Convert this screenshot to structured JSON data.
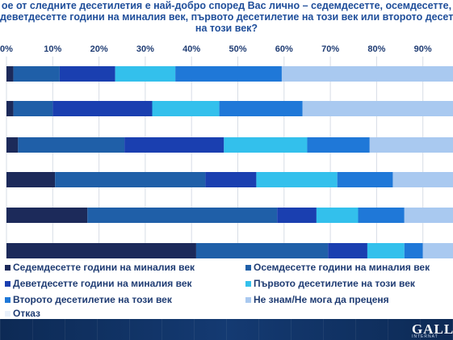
{
  "chart_data": {
    "type": "bar",
    "orientation": "horizontal",
    "stacked": true,
    "title_lines": [
      "ое от следните десетилетия е най-добро според Вас лично – седемдесетте, осемдесетте,",
      "деветдесетте години на миналия век, първото десетилетие на този век или второто десетиле",
      "на този век?"
    ],
    "x_ticks": [
      "0%",
      "10%",
      "20%",
      "30%",
      "40%",
      "50%",
      "60%",
      "70%",
      "80%",
      "90%"
    ],
    "xlim": [
      0,
      100
    ],
    "grid": true,
    "legend_position": "bottom",
    "colors": [
      "#1c2a5a",
      "#1f5fa8",
      "#1a3fb0",
      "#33c0ec",
      "#1f78d8",
      "#a9c9f0",
      "#e9f1fb"
    ],
    "series": [
      {
        "name": "Седемдесетте години на миналия век",
        "values": [
          1.5,
          1.5,
          2.5,
          10.5,
          17.5,
          41
        ]
      },
      {
        "name": "Осемдесетте години на миналия век",
        "values": [
          10,
          8.5,
          23,
          32.5,
          41,
          28.5
        ]
      },
      {
        "name": "Деветдесетте години на миналия век",
        "values": [
          12,
          21.5,
          21.5,
          11,
          8.5,
          8.5
        ]
      },
      {
        "name": "Първото десетилетие на този век",
        "values": [
          13,
          14.5,
          18,
          17.5,
          9,
          8
        ]
      },
      {
        "name": "Второто десетилетие на този век",
        "values": [
          23,
          18,
          13.5,
          12,
          10,
          4
        ]
      },
      {
        "name": "Не знам/Не мога да преценя",
        "values": [
          40.5,
          36,
          21.5,
          16.5,
          14,
          9
        ]
      },
      {
        "name": "Отказ",
        "values": [
          0,
          0,
          0,
          0,
          0,
          1
        ]
      }
    ]
  },
  "footer": {
    "logo": "GALL",
    "logo_sub": "INTERNAT"
  }
}
